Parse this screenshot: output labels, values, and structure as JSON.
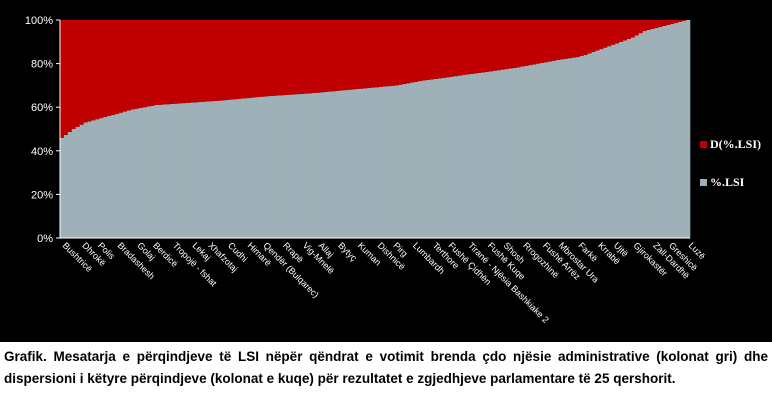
{
  "chart_data": {
    "type": "bar",
    "stacked": true,
    "percent_stacked": true,
    "series": [
      {
        "name": "D(%.LSI)",
        "color": "#c00000"
      },
      {
        "name": "%.LSI",
        "color": "#9fb1b8"
      }
    ],
    "legend_position": "right",
    "ylim": [
      0,
      100
    ],
    "y_ticks": [
      "0%",
      "20%",
      "40%",
      "60%",
      "80%",
      "100%"
    ],
    "gridlines": false,
    "bar_count": 160,
    "lsi_share_sorted_percent": [
      46,
      50,
      53,
      55,
      57,
      59,
      61,
      62,
      63,
      64,
      65,
      65.5,
      66,
      66.5,
      67,
      67.5,
      68,
      68.5,
      69,
      69.5,
      70,
      71,
      72,
      72.5,
      73,
      73.5,
      74,
      74.5,
      75,
      75.5,
      76,
      76.5,
      77,
      77.5,
      78,
      79,
      80,
      81,
      82,
      82.5,
      83,
      84,
      86,
      88,
      90,
      92,
      95,
      100
    ],
    "lsi_share_bar_positions": [
      0,
      3,
      6,
      10,
      14,
      18,
      24,
      32,
      40,
      46,
      52,
      56,
      60,
      64,
      67,
      70,
      73,
      76,
      79,
      82,
      85,
      88,
      91,
      93,
      95,
      97,
      99,
      101,
      103,
      105,
      107,
      109,
      111,
      113,
      115,
      118,
      121,
      124,
      127,
      129,
      131,
      133,
      136,
      139,
      142,
      145,
      148,
      159
    ],
    "categories_labeled": [
      "Bushtricë",
      "Dhrokë",
      "Polis",
      "Bradashesh",
      "Golaj",
      "Berdicë",
      "Tropojë - fshat",
      "Lekaj",
      "Xhafzotaj",
      "Cudhi",
      "Himarë",
      "Qendër (Bulqarec)",
      "Rrapë",
      "Vig-Mnelë",
      "Allaj",
      "Bytyç",
      "Kuman",
      "Dishnicë",
      "Pirg",
      "Lumbardh",
      "Terthore",
      "Fushë Çidhën",
      "Tiranë - Njësia Bashkiake 2",
      "Fushë Kuqe",
      "Shosh",
      "Rrogozhinë",
      "Fushë Arrëz",
      "Mbrostar Ura",
      "Farkë",
      "Krrabë",
      "Ujtë",
      "Gjirokastër",
      "Zall-Dardhë",
      "Greshicë",
      "Luzë"
    ]
  },
  "caption": {
    "text": "Grafik. Mesatarja e përqindjeve të LSI nëpër qëndrat e votimit brenda çdo njësie administrative (kolonat gri) dhe dispersioni i këtyre përqindjeve (kolonat e kuqe) për rezultatet e zgjedhjeve parlamentare të 25 qershorit."
  }
}
